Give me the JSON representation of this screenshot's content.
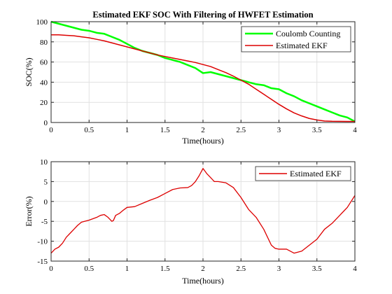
{
  "chart_data": [
    {
      "type": "line",
      "title": "Estimated EKF SOC With Filtering of HWFET Estimation",
      "xlabel": "Time(hours)",
      "ylabel": "SOC(%)",
      "xlim": [
        0,
        4
      ],
      "ylim": [
        0,
        100
      ],
      "xticks": [
        0,
        0.5,
        1,
        1.5,
        2,
        2.5,
        3,
        3.5,
        4
      ],
      "yticks": [
        0,
        20,
        40,
        60,
        80,
        100
      ],
      "xtick_labels": [
        "0",
        "0.5",
        "1",
        "1.5",
        "2",
        "2.5",
        "3",
        "3.5",
        "4"
      ],
      "ytick_labels": [
        "0",
        "20",
        "40",
        "60",
        "80",
        "100"
      ],
      "grid": true,
      "legend_position": "top-right",
      "series": [
        {
          "name": "Coulomb Counting",
          "color": "#00ff00",
          "points": [
            [
              0,
              100
            ],
            [
              0.1,
              98
            ],
            [
              0.2,
              96
            ],
            [
              0.3,
              94
            ],
            [
              0.4,
              92
            ],
            [
              0.5,
              91
            ],
            [
              0.6,
              89
            ],
            [
              0.7,
              88
            ],
            [
              0.8,
              85
            ],
            [
              0.9,
              82
            ],
            [
              1.0,
              78
            ],
            [
              1.1,
              74
            ],
            [
              1.2,
              71
            ],
            [
              1.3,
              69
            ],
            [
              1.4,
              67
            ],
            [
              1.5,
              64
            ],
            [
              1.6,
              62
            ],
            [
              1.7,
              60
            ],
            [
              1.8,
              57
            ],
            [
              1.9,
              54
            ],
            [
              2.0,
              49
            ],
            [
              2.1,
              50
            ],
            [
              2.2,
              48
            ],
            [
              2.3,
              46
            ],
            [
              2.4,
              44
            ],
            [
              2.5,
              42
            ],
            [
              2.6,
              40
            ],
            [
              2.7,
              38
            ],
            [
              2.8,
              37
            ],
            [
              2.9,
              34
            ],
            [
              3.0,
              33
            ],
            [
              3.1,
              29
            ],
            [
              3.2,
              26
            ],
            [
              3.3,
              22
            ],
            [
              3.4,
              19
            ],
            [
              3.5,
              16
            ],
            [
              3.6,
              13
            ],
            [
              3.7,
              10
            ],
            [
              3.8,
              7
            ],
            [
              3.9,
              5
            ],
            [
              4.0,
              1
            ]
          ]
        },
        {
          "name": "Estimated EKF",
          "color": "#dd0000",
          "points": [
            [
              0,
              87
            ],
            [
              0.1,
              87
            ],
            [
              0.2,
              86.5
            ],
            [
              0.3,
              86
            ],
            [
              0.4,
              85
            ],
            [
              0.5,
              84
            ],
            [
              0.6,
              82.5
            ],
            [
              0.7,
              81
            ],
            [
              0.8,
              79
            ],
            [
              0.9,
              77
            ],
            [
              1.0,
              75
            ],
            [
              1.1,
              73
            ],
            [
              1.2,
              71
            ],
            [
              1.3,
              69
            ],
            [
              1.4,
              67
            ],
            [
              1.5,
              65.5
            ],
            [
              1.6,
              64
            ],
            [
              1.7,
              62.5
            ],
            [
              1.8,
              61
            ],
            [
              1.9,
              59.5
            ],
            [
              2.0,
              57.5
            ],
            [
              2.1,
              55.5
            ],
            [
              2.2,
              52.5
            ],
            [
              2.3,
              49.5
            ],
            [
              2.4,
              46
            ],
            [
              2.5,
              42
            ],
            [
              2.6,
              38
            ],
            [
              2.7,
              33
            ],
            [
              2.8,
              28
            ],
            [
              2.9,
              23
            ],
            [
              3.0,
              18
            ],
            [
              3.1,
              13.5
            ],
            [
              3.2,
              9.5
            ],
            [
              3.3,
              6.5
            ],
            [
              3.4,
              4
            ],
            [
              3.5,
              2.5
            ],
            [
              3.6,
              1.5
            ],
            [
              3.7,
              1.2
            ],
            [
              3.8,
              1.1
            ],
            [
              3.9,
              1
            ],
            [
              4.0,
              1
            ]
          ]
        }
      ]
    },
    {
      "type": "line",
      "title": "",
      "xlabel": "Time(hours)",
      "ylabel": "Error(%)",
      "xlim": [
        0,
        4
      ],
      "ylim": [
        -15,
        10
      ],
      "xticks": [
        0,
        0.5,
        1,
        1.5,
        2,
        2.5,
        3,
        3.5,
        4
      ],
      "yticks": [
        -15,
        -10,
        -5,
        0,
        5,
        10
      ],
      "xtick_labels": [
        "0",
        "0.5",
        "1",
        "1.5",
        "2",
        "2.5",
        "3",
        "3.5",
        "4"
      ],
      "ytick_labels": [
        "-15",
        "-10",
        "-5",
        "0",
        "5",
        "10"
      ],
      "grid": true,
      "legend_position": "top-right",
      "series": [
        {
          "name": "Estimated EKF",
          "color": "#dd0000",
          "points": [
            [
              0,
              -13
            ],
            [
              0.05,
              -12
            ],
            [
              0.1,
              -11.5
            ],
            [
              0.15,
              -10.5
            ],
            [
              0.2,
              -9
            ],
            [
              0.25,
              -8
            ],
            [
              0.3,
              -7
            ],
            [
              0.35,
              -6
            ],
            [
              0.4,
              -5.2
            ],
            [
              0.5,
              -4.7
            ],
            [
              0.6,
              -4
            ],
            [
              0.65,
              -3.5
            ],
            [
              0.7,
              -3.3
            ],
            [
              0.75,
              -4
            ],
            [
              0.8,
              -5
            ],
            [
              0.82,
              -4.8
            ],
            [
              0.85,
              -3.5
            ],
            [
              0.9,
              -3
            ],
            [
              0.95,
              -2.2
            ],
            [
              1.0,
              -1.5
            ],
            [
              1.1,
              -1.3
            ],
            [
              1.2,
              -0.5
            ],
            [
              1.3,
              0.3
            ],
            [
              1.4,
              1
            ],
            [
              1.5,
              2
            ],
            [
              1.6,
              3
            ],
            [
              1.7,
              3.4
            ],
            [
              1.8,
              3.5
            ],
            [
              1.85,
              4
            ],
            [
              1.9,
              5
            ],
            [
              1.95,
              6.5
            ],
            [
              2.0,
              8.3
            ],
            [
              2.05,
              7
            ],
            [
              2.1,
              6
            ],
            [
              2.15,
              5
            ],
            [
              2.2,
              5
            ],
            [
              2.3,
              4.7
            ],
            [
              2.4,
              3.5
            ],
            [
              2.5,
              1
            ],
            [
              2.6,
              -2
            ],
            [
              2.7,
              -4
            ],
            [
              2.8,
              -7
            ],
            [
              2.9,
              -11
            ],
            [
              2.95,
              -11.8
            ],
            [
              3.0,
              -12
            ],
            [
              3.1,
              -12
            ],
            [
              3.2,
              -13
            ],
            [
              3.3,
              -12.5
            ],
            [
              3.4,
              -11
            ],
            [
              3.5,
              -9.5
            ],
            [
              3.6,
              -7
            ],
            [
              3.7,
              -5.5
            ],
            [
              3.8,
              -3.5
            ],
            [
              3.85,
              -2.5
            ],
            [
              3.9,
              -1.5
            ],
            [
              3.95,
              0
            ],
            [
              4.0,
              1.5
            ]
          ]
        }
      ]
    }
  ]
}
